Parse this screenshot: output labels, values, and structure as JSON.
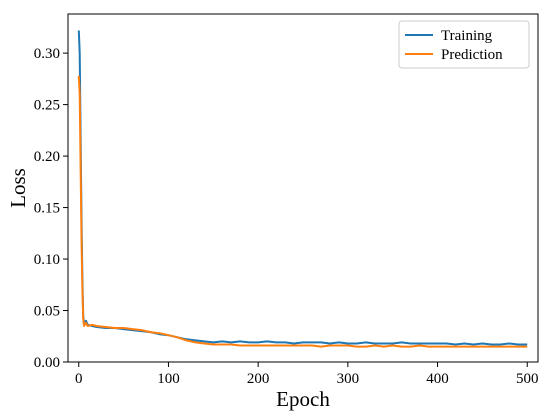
{
  "chart_data": {
    "type": "line",
    "title": "",
    "xlabel": "Epoch",
    "ylabel": "Loss",
    "xlim": [
      -12,
      512
    ],
    "ylim": [
      0.0,
      0.338
    ],
    "x_ticks": [
      0,
      100,
      200,
      300,
      400,
      500
    ],
    "x_tick_labels": [
      "0",
      "100",
      "200",
      "300",
      "400",
      "500"
    ],
    "y_ticks": [
      0.0,
      0.05,
      0.1,
      0.15,
      0.2,
      0.25,
      0.3
    ],
    "y_tick_labels": [
      "0.00",
      "0.05",
      "0.10",
      "0.15",
      "0.20",
      "0.25",
      "0.30"
    ],
    "grid": false,
    "legend_position": "top-right",
    "series": [
      {
        "name": "Training",
        "color": "#1f77b4",
        "x": [
          0,
          1,
          2,
          3,
          4,
          5,
          6,
          7,
          8,
          10,
          15,
          20,
          30,
          40,
          50,
          60,
          70,
          80,
          90,
          100,
          110,
          120,
          130,
          140,
          150,
          160,
          170,
          180,
          190,
          200,
          210,
          220,
          230,
          240,
          250,
          260,
          270,
          280,
          290,
          300,
          310,
          320,
          330,
          340,
          350,
          360,
          370,
          380,
          390,
          400,
          410,
          420,
          430,
          440,
          450,
          460,
          470,
          480,
          490,
          500
        ],
        "y": [
          0.322,
          0.3,
          0.22,
          0.14,
          0.08,
          0.045,
          0.036,
          0.038,
          0.04,
          0.036,
          0.035,
          0.034,
          0.033,
          0.033,
          0.032,
          0.031,
          0.03,
          0.029,
          0.027,
          0.026,
          0.024,
          0.022,
          0.021,
          0.02,
          0.019,
          0.02,
          0.019,
          0.02,
          0.019,
          0.019,
          0.02,
          0.019,
          0.019,
          0.018,
          0.019,
          0.019,
          0.019,
          0.018,
          0.019,
          0.018,
          0.018,
          0.019,
          0.018,
          0.018,
          0.018,
          0.019,
          0.018,
          0.018,
          0.018,
          0.018,
          0.018,
          0.017,
          0.018,
          0.017,
          0.018,
          0.017,
          0.017,
          0.018,
          0.017,
          0.017
        ]
      },
      {
        "name": "Prediction",
        "color": "#ff7f0e",
        "x": [
          0,
          1,
          2,
          3,
          4,
          5,
          6,
          7,
          8,
          10,
          15,
          20,
          30,
          40,
          50,
          60,
          70,
          80,
          90,
          100,
          110,
          120,
          130,
          140,
          150,
          160,
          170,
          180,
          190,
          200,
          210,
          220,
          230,
          240,
          250,
          260,
          270,
          280,
          290,
          300,
          310,
          320,
          330,
          340,
          350,
          360,
          370,
          380,
          390,
          400,
          410,
          420,
          430,
          440,
          450,
          460,
          470,
          480,
          490,
          500
        ],
        "y": [
          0.278,
          0.26,
          0.19,
          0.12,
          0.07,
          0.042,
          0.035,
          0.037,
          0.038,
          0.035,
          0.036,
          0.035,
          0.034,
          0.033,
          0.033,
          0.032,
          0.031,
          0.029,
          0.028,
          0.026,
          0.024,
          0.021,
          0.019,
          0.018,
          0.017,
          0.017,
          0.017,
          0.016,
          0.016,
          0.016,
          0.016,
          0.016,
          0.016,
          0.016,
          0.016,
          0.016,
          0.015,
          0.016,
          0.016,
          0.016,
          0.015,
          0.015,
          0.016,
          0.015,
          0.016,
          0.015,
          0.015,
          0.016,
          0.015,
          0.015,
          0.015,
          0.015,
          0.015,
          0.015,
          0.015,
          0.015,
          0.015,
          0.015,
          0.015,
          0.015
        ]
      }
    ]
  }
}
